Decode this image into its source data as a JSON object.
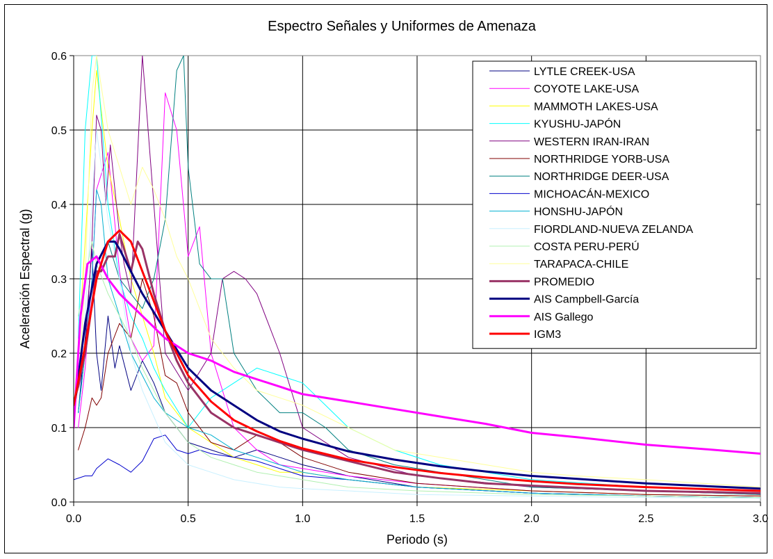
{
  "chart_data": {
    "type": "line",
    "title": "Espectro Señales y Uniformes de Amenaza",
    "xlabel": "Periodo (s)",
    "ylabel": "Aceleración Espectral (g)",
    "xlim": [
      0,
      3.0
    ],
    "ylim": [
      0,
      0.6
    ],
    "xticks": [
      0.0,
      0.5,
      1.0,
      1.5,
      2.0,
      2.5,
      3.0
    ],
    "xtick_labels": [
      "0.0",
      "0.5",
      "1.0",
      "1.5",
      "2.0",
      "2.5",
      "3.0"
    ],
    "yticks": [
      0.0,
      0.1,
      0.2,
      0.3,
      0.4,
      0.5,
      0.6
    ],
    "ytick_labels": [
      "0.0",
      "0.1",
      "0.2",
      "0.3",
      "0.4",
      "0.5",
      "0.6"
    ],
    "grid": true,
    "legend_position": "top-right",
    "series": [
      {
        "name": "LYTLE CREEK-USA",
        "color": "#000080",
        "width": 1,
        "x": [
          0.02,
          0.05,
          0.08,
          0.1,
          0.12,
          0.15,
          0.18,
          0.2,
          0.25,
          0.3,
          0.35,
          0.4,
          0.5,
          0.6,
          0.7,
          0.8,
          0.9,
          1.0,
          1.2,
          1.5,
          2.0,
          2.5,
          3.0
        ],
        "y": [
          0.12,
          0.22,
          0.34,
          0.2,
          0.15,
          0.25,
          0.18,
          0.21,
          0.15,
          0.19,
          0.16,
          0.12,
          0.08,
          0.07,
          0.06,
          0.07,
          0.06,
          0.05,
          0.035,
          0.02,
          0.012,
          0.008,
          0.006
        ]
      },
      {
        "name": "COYOTE LAKE-USA",
        "color": "#ff00ff",
        "width": 1,
        "x": [
          0.02,
          0.05,
          0.08,
          0.1,
          0.15,
          0.2,
          0.25,
          0.3,
          0.35,
          0.4,
          0.45,
          0.5,
          0.55,
          0.6,
          0.7,
          0.8,
          0.9,
          1.0,
          1.2,
          1.5,
          2.0,
          2.5,
          3.0
        ],
        "y": [
          0.1,
          0.18,
          0.3,
          0.42,
          0.47,
          0.31,
          0.22,
          0.19,
          0.21,
          0.55,
          0.5,
          0.33,
          0.37,
          0.2,
          0.1,
          0.07,
          0.05,
          0.045,
          0.035,
          0.025,
          0.015,
          0.01,
          0.008
        ]
      },
      {
        "name": "MAMMOTH LAKES-USA",
        "color": "#ffff00",
        "width": 1,
        "x": [
          0.02,
          0.05,
          0.08,
          0.1,
          0.15,
          0.2,
          0.25,
          0.3,
          0.35,
          0.4,
          0.45,
          0.5,
          0.6,
          0.7,
          0.8,
          0.9,
          1.0,
          1.2,
          1.5,
          2.0,
          2.5,
          3.0
        ],
        "y": [
          0.2,
          0.35,
          0.5,
          0.58,
          0.45,
          0.38,
          0.3,
          0.25,
          0.2,
          0.14,
          0.12,
          0.1,
          0.08,
          0.06,
          0.05,
          0.04,
          0.04,
          0.03,
          0.02,
          0.015,
          0.01,
          0.008
        ]
      },
      {
        "name": "KYUSHU-JAPÓN",
        "color": "#00ffff",
        "width": 1,
        "x": [
          0.02,
          0.05,
          0.08,
          0.1,
          0.15,
          0.2,
          0.25,
          0.3,
          0.35,
          0.4,
          0.5,
          0.6,
          0.7,
          0.8,
          0.9,
          1.0,
          1.1,
          1.2,
          1.4,
          1.6,
          1.8,
          2.0,
          2.5,
          3.0
        ],
        "y": [
          0.22,
          0.5,
          0.6,
          0.6,
          0.4,
          0.3,
          0.25,
          0.22,
          0.18,
          0.15,
          0.1,
          0.14,
          0.16,
          0.18,
          0.17,
          0.16,
          0.13,
          0.1,
          0.07,
          0.05,
          0.04,
          0.03,
          0.02,
          0.015
        ]
      },
      {
        "name": "WESTERN IRAN-IRAN",
        "color": "#800080",
        "width": 1,
        "x": [
          0.02,
          0.05,
          0.08,
          0.1,
          0.12,
          0.14,
          0.16,
          0.2,
          0.22,
          0.25,
          0.3,
          0.35,
          0.4,
          0.5,
          0.6,
          0.65,
          0.7,
          0.75,
          0.8,
          0.9,
          1.0,
          1.2,
          1.5,
          2.0,
          2.5,
          3.0
        ],
        "y": [
          0.15,
          0.2,
          0.35,
          0.52,
          0.5,
          0.4,
          0.48,
          0.36,
          0.32,
          0.28,
          0.6,
          0.4,
          0.2,
          0.15,
          0.2,
          0.3,
          0.31,
          0.3,
          0.28,
          0.2,
          0.1,
          0.06,
          0.035,
          0.02,
          0.015,
          0.01
        ]
      },
      {
        "name": "NORTHRIDGE YORB-USA",
        "color": "#800000",
        "width": 1,
        "x": [
          0.02,
          0.05,
          0.08,
          0.1,
          0.12,
          0.15,
          0.2,
          0.25,
          0.3,
          0.35,
          0.4,
          0.45,
          0.5,
          0.6,
          0.7,
          0.8,
          0.9,
          1.0,
          1.2,
          1.5,
          2.0,
          2.5,
          3.0
        ],
        "y": [
          0.07,
          0.1,
          0.14,
          0.13,
          0.14,
          0.2,
          0.24,
          0.22,
          0.3,
          0.25,
          0.17,
          0.16,
          0.12,
          0.08,
          0.07,
          0.09,
          0.08,
          0.06,
          0.04,
          0.025,
          0.015,
          0.01,
          0.008
        ]
      },
      {
        "name": "NORTHRIDGE DEER-USA",
        "color": "#008080",
        "width": 1,
        "x": [
          0.02,
          0.05,
          0.1,
          0.15,
          0.2,
          0.25,
          0.3,
          0.35,
          0.4,
          0.45,
          0.48,
          0.5,
          0.55,
          0.6,
          0.65,
          0.7,
          0.8,
          0.9,
          1.0,
          1.1,
          1.2,
          1.4,
          1.6,
          2.0,
          2.5,
          3.0
        ],
        "y": [
          0.12,
          0.2,
          0.3,
          0.35,
          0.3,
          0.28,
          0.26,
          0.3,
          0.38,
          0.58,
          0.6,
          0.45,
          0.32,
          0.3,
          0.3,
          0.2,
          0.15,
          0.12,
          0.12,
          0.1,
          0.07,
          0.05,
          0.04,
          0.02,
          0.015,
          0.01
        ]
      },
      {
        "name": "MICHOACÁN-MEXICO",
        "color": "#0000cc",
        "width": 1,
        "x": [
          0.0,
          0.05,
          0.08,
          0.1,
          0.15,
          0.2,
          0.25,
          0.3,
          0.35,
          0.4,
          0.45,
          0.5,
          0.55,
          0.6,
          0.7,
          0.8,
          0.9,
          1.0,
          1.2,
          1.5,
          2.0,
          2.5,
          3.0
        ],
        "y": [
          0.03,
          0.035,
          0.035,
          0.045,
          0.058,
          0.05,
          0.04,
          0.055,
          0.085,
          0.09,
          0.07,
          0.065,
          0.07,
          0.065,
          0.06,
          0.055,
          0.045,
          0.035,
          0.03,
          0.02,
          0.012,
          0.008,
          0.006
        ]
      },
      {
        "name": "HONSHU-JAPÓN",
        "color": "#00b0d0",
        "width": 1,
        "x": [
          0.02,
          0.05,
          0.08,
          0.1,
          0.12,
          0.15,
          0.2,
          0.25,
          0.3,
          0.35,
          0.4,
          0.5,
          0.6,
          0.7,
          0.8,
          0.9,
          1.0,
          1.2,
          1.5,
          2.0,
          2.5,
          3.0
        ],
        "y": [
          0.12,
          0.2,
          0.3,
          0.42,
          0.4,
          0.3,
          0.25,
          0.2,
          0.17,
          0.14,
          0.12,
          0.1,
          0.09,
          0.07,
          0.06,
          0.05,
          0.04,
          0.03,
          0.02,
          0.012,
          0.008,
          0.006
        ]
      },
      {
        "name": "FIORDLAND-NUEVA ZELANDA",
        "color": "#c8f0ff",
        "width": 1,
        "x": [
          0.02,
          0.05,
          0.08,
          0.1,
          0.15,
          0.2,
          0.25,
          0.3,
          0.4,
          0.5,
          0.6,
          0.7,
          0.8,
          0.9,
          1.0,
          1.2,
          1.5,
          2.0,
          2.5,
          3.0
        ],
        "y": [
          0.15,
          0.25,
          0.4,
          0.5,
          0.38,
          0.3,
          0.2,
          0.15,
          0.08,
          0.05,
          0.04,
          0.03,
          0.025,
          0.02,
          0.018,
          0.015,
          0.01,
          0.008,
          0.006,
          0.005
        ]
      },
      {
        "name": "COSTA PERU-PERÚ",
        "color": "#b0f0b0",
        "width": 1,
        "x": [
          0.02,
          0.05,
          0.08,
          0.1,
          0.15,
          0.2,
          0.25,
          0.3,
          0.35,
          0.4,
          0.5,
          0.6,
          0.7,
          0.8,
          0.9,
          1.0,
          1.2,
          1.5,
          2.0,
          2.5,
          3.0
        ],
        "y": [
          0.25,
          0.3,
          0.35,
          0.32,
          0.28,
          0.25,
          0.22,
          0.18,
          0.15,
          0.12,
          0.08,
          0.06,
          0.05,
          0.04,
          0.035,
          0.03,
          0.02,
          0.015,
          0.01,
          0.008,
          0.006
        ]
      },
      {
        "name": "TARAPACA-CHILE",
        "color": "#ffff99",
        "width": 1,
        "x": [
          0.02,
          0.05,
          0.08,
          0.1,
          0.15,
          0.2,
          0.25,
          0.3,
          0.35,
          0.4,
          0.45,
          0.5,
          0.6,
          0.7,
          0.8,
          0.9,
          1.0,
          1.2,
          1.4,
          1.6,
          1.8,
          2.0,
          2.2,
          2.5,
          3.0
        ],
        "y": [
          0.15,
          0.3,
          0.55,
          0.6,
          0.5,
          0.45,
          0.4,
          0.45,
          0.42,
          0.38,
          0.33,
          0.3,
          0.22,
          0.18,
          0.15,
          0.14,
          0.13,
          0.1,
          0.07,
          0.06,
          0.05,
          0.04,
          0.035,
          0.03,
          0.02
        ]
      },
      {
        "name": "PROMEDIO",
        "color": "#993366",
        "width": 3,
        "x": [
          0.0,
          0.05,
          0.1,
          0.12,
          0.15,
          0.18,
          0.2,
          0.22,
          0.25,
          0.28,
          0.3,
          0.35,
          0.4,
          0.45,
          0.5,
          0.6,
          0.7,
          0.8,
          0.9,
          1.0,
          1.2,
          1.4,
          1.6,
          1.8,
          2.0,
          2.5,
          3.0
        ],
        "y": [
          0.13,
          0.2,
          0.31,
          0.31,
          0.33,
          0.33,
          0.36,
          0.34,
          0.31,
          0.35,
          0.34,
          0.28,
          0.23,
          0.19,
          0.16,
          0.12,
          0.1,
          0.09,
          0.08,
          0.07,
          0.055,
          0.04,
          0.032,
          0.025,
          0.022,
          0.015,
          0.012
        ]
      },
      {
        "name": "AIS Campbell-García",
        "color": "#000080",
        "width": 3,
        "x": [
          0.0,
          0.05,
          0.1,
          0.15,
          0.18,
          0.2,
          0.25,
          0.3,
          0.4,
          0.5,
          0.6,
          0.7,
          0.8,
          0.9,
          1.0,
          1.2,
          1.4,
          1.6,
          1.8,
          2.0,
          2.2,
          2.5,
          3.0
        ],
        "y": [
          0.12,
          0.24,
          0.32,
          0.35,
          0.35,
          0.34,
          0.31,
          0.28,
          0.23,
          0.18,
          0.15,
          0.13,
          0.11,
          0.095,
          0.085,
          0.068,
          0.057,
          0.048,
          0.041,
          0.035,
          0.031,
          0.025,
          0.018
        ]
      },
      {
        "name": "AIS Gallego",
        "color": "#ff00ff",
        "width": 3,
        "x": [
          0.0,
          0.03,
          0.06,
          0.1,
          0.15,
          0.2,
          0.3,
          0.4,
          0.5,
          0.6,
          0.7,
          0.8,
          0.9,
          1.0,
          1.2,
          1.4,
          1.6,
          1.8,
          2.0,
          2.2,
          2.5,
          2.8,
          3.0
        ],
        "y": [
          0.1,
          0.25,
          0.32,
          0.33,
          0.3,
          0.28,
          0.25,
          0.22,
          0.2,
          0.19,
          0.175,
          0.165,
          0.155,
          0.145,
          0.135,
          0.125,
          0.115,
          0.105,
          0.093,
          0.087,
          0.077,
          0.07,
          0.065
        ]
      },
      {
        "name": "IGM3",
        "color": "#ff0000",
        "width": 3,
        "x": [
          0.0,
          0.05,
          0.1,
          0.15,
          0.2,
          0.25,
          0.3,
          0.35,
          0.4,
          0.5,
          0.6,
          0.7,
          0.8,
          0.9,
          1.0,
          1.2,
          1.4,
          1.6,
          1.8,
          2.0,
          2.2,
          2.5,
          3.0
        ],
        "y": [
          0.13,
          0.21,
          0.3,
          0.35,
          0.365,
          0.35,
          0.31,
          0.27,
          0.23,
          0.17,
          0.135,
          0.11,
          0.095,
          0.082,
          0.072,
          0.057,
          0.047,
          0.039,
          0.033,
          0.028,
          0.024,
          0.02,
          0.015
        ]
      }
    ]
  }
}
